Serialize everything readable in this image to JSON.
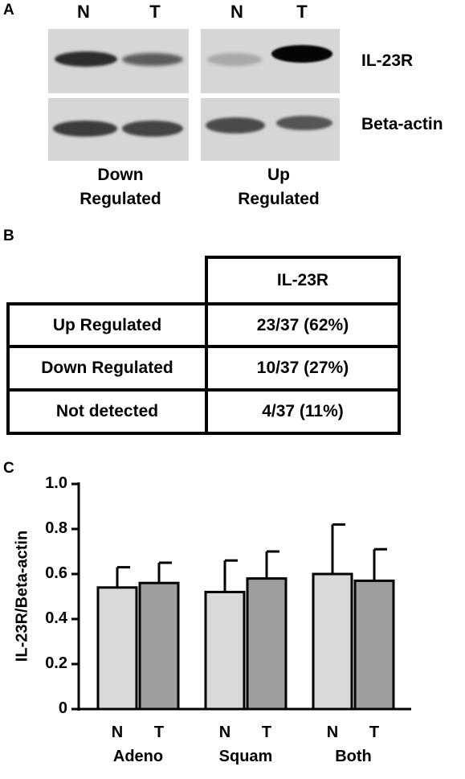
{
  "panel_a": {
    "label": "A",
    "lanes": [
      "N",
      "T",
      "N",
      "T"
    ],
    "rows": [
      "IL-23R",
      "Beta-actin"
    ],
    "conditions": [
      {
        "line1": "Down",
        "line2": "Regulated"
      },
      {
        "line1": "Up",
        "line2": "Regulated"
      }
    ]
  },
  "panel_b": {
    "label": "B",
    "header": "IL-23R",
    "rows": [
      {
        "label": "Up Regulated",
        "value": "23/37 (62%)"
      },
      {
        "label": "Down Regulated",
        "value": "10/37 (27%)"
      },
      {
        "label": "Not detected",
        "value": "4/37 (11%)"
      }
    ]
  },
  "panel_c": {
    "label": "C"
  },
  "chart_data": {
    "type": "bar",
    "ylabel": "IL-23R/Beta-actin",
    "ylim": [
      0,
      1.0
    ],
    "yticks": [
      "0",
      "0.2",
      "0.4",
      "0.6",
      "0.8",
      "1.0"
    ],
    "groups": [
      "Adeno",
      "Squam",
      "Both"
    ],
    "series": [
      {
        "name": "N",
        "values": [
          0.54,
          0.52,
          0.6
        ],
        "errors": [
          0.09,
          0.14,
          0.22
        ],
        "color": "#d9d9d9"
      },
      {
        "name": "T",
        "values": [
          0.56,
          0.58,
          0.57
        ],
        "errors": [
          0.09,
          0.12,
          0.14
        ],
        "color": "#9e9e9e"
      }
    ]
  }
}
